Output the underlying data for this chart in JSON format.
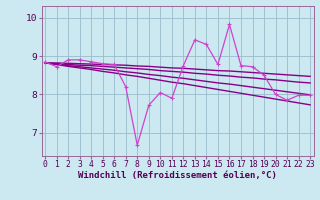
{
  "title": "",
  "xlabel": "Windchill (Refroidissement éolien,°C)",
  "ylabel": "",
  "bg_color": "#cce8f0",
  "grid_color": "#99bbcc",
  "line_color_dark": "#880088",
  "line_color_mid": "#aa22aa",
  "line_color_light": "#cc44cc",
  "x": [
    0,
    1,
    2,
    3,
    4,
    5,
    6,
    7,
    8,
    9,
    10,
    11,
    12,
    13,
    14,
    15,
    16,
    17,
    18,
    19,
    20,
    21,
    22,
    23
  ],
  "y_volatile": [
    8.85,
    8.72,
    8.9,
    8.9,
    8.85,
    8.8,
    8.78,
    8.2,
    6.68,
    7.72,
    8.05,
    7.9,
    8.75,
    9.42,
    9.3,
    8.78,
    9.82,
    8.75,
    8.72,
    8.5,
    8.0,
    7.85,
    7.98,
    7.98
  ],
  "y_trend1": [
    8.82,
    8.82,
    8.81,
    8.8,
    8.79,
    8.78,
    8.77,
    8.76,
    8.74,
    8.73,
    8.71,
    8.69,
    8.68,
    8.66,
    8.64,
    8.62,
    8.61,
    8.59,
    8.57,
    8.55,
    8.53,
    8.51,
    8.49,
    8.47
  ],
  "y_trend2": [
    8.82,
    8.8,
    8.78,
    8.76,
    8.75,
    8.73,
    8.71,
    8.69,
    8.67,
    8.65,
    8.62,
    8.6,
    8.58,
    8.55,
    8.53,
    8.5,
    8.48,
    8.45,
    8.43,
    8.4,
    8.38,
    8.35,
    8.32,
    8.3
  ],
  "y_trend3": [
    8.82,
    8.79,
    8.75,
    8.72,
    8.69,
    8.66,
    8.63,
    8.59,
    8.56,
    8.52,
    8.49,
    8.45,
    8.42,
    8.38,
    8.34,
    8.3,
    8.27,
    8.23,
    8.19,
    8.15,
    8.11,
    8.07,
    8.03,
    7.99
  ],
  "y_trend4": [
    8.82,
    8.78,
    8.73,
    8.69,
    8.65,
    8.6,
    8.56,
    8.51,
    8.47,
    8.42,
    8.37,
    8.32,
    8.28,
    8.23,
    8.18,
    8.13,
    8.08,
    8.03,
    7.98,
    7.93,
    7.88,
    7.83,
    7.78,
    7.73
  ],
  "ylim": [
    6.4,
    10.3
  ],
  "yticks": [
    7,
    8,
    9,
    10
  ],
  "xticks": [
    0,
    1,
    2,
    3,
    4,
    5,
    6,
    7,
    8,
    9,
    10,
    11,
    12,
    13,
    14,
    15,
    16,
    17,
    18,
    19,
    20,
    21,
    22,
    23
  ],
  "xlabel_fontsize": 6.5,
  "tick_fontsize": 5.8
}
